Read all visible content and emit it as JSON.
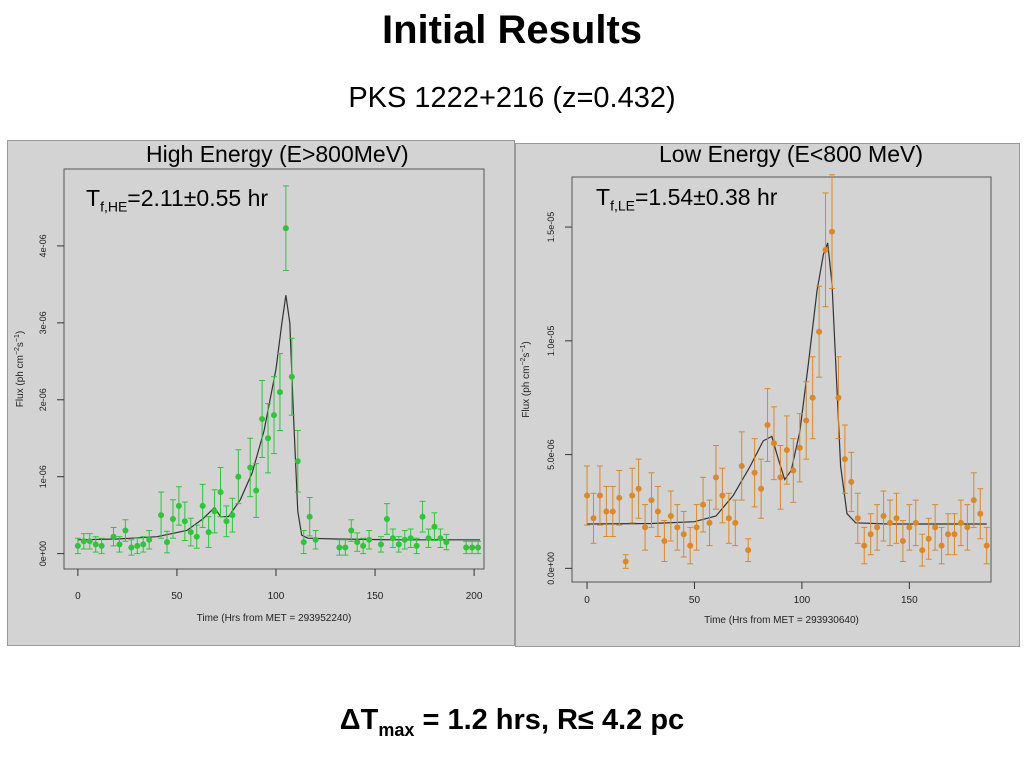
{
  "slide": {
    "title": "Initial Results",
    "subtitle": "PKS 1222+216 (z=0.432)"
  },
  "footer": {
    "delta": "ΔT",
    "sub": "max",
    "rest": " = 1.2 hrs, R≤ 4.2 pc"
  },
  "colors": {
    "panel_bg": "#d3d3d3",
    "plot_bg": "#d3d3d3",
    "high_energy": "#2fc43a",
    "low_energy": "#d9882a",
    "fit_line": "#333333"
  },
  "chart_data": [
    {
      "type": "scatter",
      "caption": "High Energy (E>800MeV)",
      "fit_label": {
        "prefix": "T",
        "sub": "f,HE",
        "rest": "=2.11±0.55 hr"
      },
      "xlabel": "Time (Hrs from MET = 293952240)",
      "ylabel": "Flux (ph cm",
      "ylabel_sup1": "−2",
      "ylabel_mid": "s",
      "ylabel_sup2": "−1",
      "ylabel_end": ")",
      "xlim": [
        -7,
        205
      ],
      "ylim": [
        -2e-07,
        5e-06
      ],
      "xticks": [
        0,
        50,
        100,
        150,
        200
      ],
      "xtick_labels": [
        "0",
        "50",
        "100",
        "150",
        "200"
      ],
      "yticks": [
        0,
        1e-06,
        2e-06,
        3e-06,
        4e-06
      ],
      "ytick_labels": [
        "0e+00",
        "1e-06",
        "2e-06",
        "3e-06",
        "4e-06"
      ],
      "grid": false,
      "point_color": "#2fc43a",
      "points": [
        [
          0,
          1e-07,
          1e-07
        ],
        [
          3,
          1.6e-07,
          1e-07
        ],
        [
          6,
          1.6e-07,
          1e-07
        ],
        [
          9,
          1.2e-07,
          1e-07
        ],
        [
          12,
          1e-07,
          1e-07
        ],
        [
          18,
          2.2e-07,
          1.2e-07
        ],
        [
          21,
          1.2e-07,
          1e-07
        ],
        [
          24,
          3e-07,
          1.4e-07
        ],
        [
          27,
          8e-08,
          1e-07
        ],
        [
          30,
          1e-07,
          1e-07
        ],
        [
          33,
          1.2e-07,
          1e-07
        ],
        [
          36,
          1.8e-07,
          1.2e-07
        ],
        [
          42,
          5e-07,
          3e-07
        ],
        [
          45,
          1.5e-07,
          1.4e-07
        ],
        [
          48,
          4.5e-07,
          2.5e-07
        ],
        [
          51,
          6.2e-07,
          2.5e-07
        ],
        [
          54,
          4.2e-07,
          2.5e-07
        ],
        [
          57,
          2.8e-07,
          1.8e-07
        ],
        [
          60,
          2.2e-07,
          1.5e-07
        ],
        [
          63,
          6.2e-07,
          2.8e-07
        ],
        [
          66,
          2.8e-07,
          2e-07
        ],
        [
          69,
          5.5e-07,
          2.8e-07
        ],
        [
          72,
          8e-07,
          3.2e-07
        ],
        [
          75,
          4.2e-07,
          2e-07
        ],
        [
          78,
          5e-07,
          2.2e-07
        ],
        [
          81,
          1e-06,
          3.5e-07
        ],
        [
          87,
          1.12e-06,
          3.8e-07
        ],
        [
          90,
          8.2e-07,
          3.5e-07
        ],
        [
          93,
          1.75e-06,
          5e-07
        ],
        [
          96,
          1.5e-06,
          4.5e-07
        ],
        [
          99,
          1.8e-06,
          5e-07
        ],
        [
          102,
          2.1e-06,
          5e-07
        ],
        [
          105,
          4.23e-06,
          5.5e-07
        ],
        [
          108,
          2.3e-06,
          5e-07
        ],
        [
          111,
          1.2e-06,
          4e-07
        ],
        [
          114,
          1.5e-07,
          1.5e-07
        ],
        [
          117,
          4.8e-07,
          2.5e-07
        ],
        [
          120,
          1.8e-07,
          1.2e-07
        ],
        [
          132,
          8e-08,
          1e-07
        ],
        [
          135,
          8e-08,
          1e-07
        ],
        [
          138,
          3e-07,
          1.4e-07
        ],
        [
          141,
          1.5e-07,
          1.2e-07
        ],
        [
          144,
          1e-07,
          1e-07
        ],
        [
          147,
          1.8e-07,
          1.2e-07
        ],
        [
          153,
          1.2e-07,
          1e-07
        ],
        [
          156,
          4.5e-07,
          2e-07
        ],
        [
          159,
          2e-07,
          1.2e-07
        ],
        [
          162,
          1.2e-07,
          1e-07
        ],
        [
          165,
          1.8e-07,
          1.2e-07
        ],
        [
          168,
          2e-07,
          1.2e-07
        ],
        [
          171,
          1e-07,
          1e-07
        ],
        [
          174,
          4.8e-07,
          2e-07
        ],
        [
          177,
          2e-07,
          1.2e-07
        ],
        [
          180,
          3.5e-07,
          1.8e-07
        ],
        [
          183,
          2e-07,
          1.2e-07
        ],
        [
          186,
          1.5e-07,
          1e-07
        ],
        [
          196,
          8e-08,
          8e-08
        ],
        [
          199,
          8e-08,
          8e-08
        ],
        [
          202,
          8e-08,
          8e-08
        ]
      ],
      "fit_curve": [
        [
          0,
          1.8e-07
        ],
        [
          20,
          1.9e-07
        ],
        [
          40,
          2.2e-07
        ],
        [
          55,
          3e-07
        ],
        [
          63,
          4.5e-07
        ],
        [
          69,
          6e-07
        ],
        [
          72,
          4.8e-07
        ],
        [
          76,
          4.8e-07
        ],
        [
          82,
          7e-07
        ],
        [
          88,
          1.05e-06
        ],
        [
          94,
          1.6e-06
        ],
        [
          100,
          2.4e-06
        ],
        [
          103,
          3e-06
        ],
        [
          105,
          3.36e-06
        ],
        [
          107,
          3e-06
        ],
        [
          109,
          1.7e-06
        ],
        [
          111,
          5.5e-07
        ],
        [
          113,
          2.4e-07
        ],
        [
          116,
          2e-07
        ],
        [
          130,
          1.9e-07
        ],
        [
          160,
          1.8e-07
        ],
        [
          203,
          1.8e-07
        ]
      ]
    },
    {
      "type": "scatter",
      "caption": "Low Energy (E<800 MeV)",
      "fit_label": {
        "prefix": "T",
        "sub": "f,LE",
        "rest": "=1.54±0.38 hr"
      },
      "xlabel": "Time (Hrs from MET = 293930640)",
      "ylabel": "Flux (ph cm",
      "ylabel_sup1": "−2",
      "ylabel_mid": "s",
      "ylabel_sup2": "−1",
      "ylabel_end": ")",
      "xlim": [
        -7,
        188
      ],
      "ylim": [
        -6e-07,
        1.72e-05
      ],
      "xticks": [
        0,
        50,
        100,
        150
      ],
      "xtick_labels": [
        "0",
        "50",
        "100",
        "150"
      ],
      "yticks": [
        0,
        5e-06,
        1e-05,
        1.5e-05
      ],
      "ytick_labels": [
        "0.0e+00",
        "5.0e-06",
        "1.0e-05",
        "1.5e-05"
      ],
      "grid": false,
      "point_color": "#d9882a",
      "points": [
        [
          0,
          3.2e-06,
          1.3e-06
        ],
        [
          3,
          2.2e-06,
          1.1e-06
        ],
        [
          6,
          3.2e-06,
          1.3e-06
        ],
        [
          9,
          2.5e-06,
          1.1e-06
        ],
        [
          12,
          2.5e-06,
          1.1e-06
        ],
        [
          15,
          3.1e-06,
          1.2e-06
        ],
        [
          18,
          3e-07,
          3e-07
        ],
        [
          21,
          3.2e-06,
          1.2e-06
        ],
        [
          24,
          3.5e-06,
          1.3e-06
        ],
        [
          27,
          1.8e-06,
          1e-06
        ],
        [
          30,
          3e-06,
          1.2e-06
        ],
        [
          33,
          2.5e-06,
          1.1e-06
        ],
        [
          36,
          1.2e-06,
          9e-07
        ],
        [
          39,
          2.3e-06,
          1.1e-06
        ],
        [
          42,
          1.8e-06,
          1e-06
        ],
        [
          45,
          1.5e-06,
          1e-06
        ],
        [
          48,
          1e-06,
          8e-07
        ],
        [
          51,
          1.8e-06,
          1e-06
        ],
        [
          54,
          2.8e-06,
          1.2e-06
        ],
        [
          57,
          2e-06,
          1e-06
        ],
        [
          60,
          4e-06,
          1.4e-06
        ],
        [
          63,
          3.2e-06,
          1.2e-06
        ],
        [
          66,
          2.2e-06,
          1.1e-06
        ],
        [
          69,
          2e-06,
          1e-06
        ],
        [
          72,
          4.5e-06,
          1.5e-06
        ],
        [
          75,
          8e-07,
          5e-07
        ],
        [
          78,
          4.2e-06,
          1.5e-06
        ],
        [
          81,
          3.5e-06,
          1.3e-06
        ],
        [
          84,
          6.3e-06,
          1.6e-06
        ],
        [
          87,
          5.5e-06,
          1.6e-06
        ],
        [
          90,
          4e-06,
          1.4e-06
        ],
        [
          93,
          5.2e-06,
          1.5e-06
        ],
        [
          96,
          4.3e-06,
          1.4e-06
        ],
        [
          99,
          5.3e-06,
          1.5e-06
        ],
        [
          102,
          6.5e-06,
          1.7e-06
        ],
        [
          105,
          7.5e-06,
          1.8e-06
        ],
        [
          108,
          1.04e-05,
          2e-06
        ],
        [
          111,
          1.4e-05,
          2.5e-06
        ],
        [
          114,
          1.48e-05,
          2.5e-06
        ],
        [
          117,
          7.5e-06,
          1.8e-06
        ],
        [
          120,
          4.8e-06,
          1.5e-06
        ],
        [
          123,
          3.8e-06,
          1.3e-06
        ],
        [
          126,
          2.2e-06,
          1.1e-06
        ],
        [
          129,
          1e-06,
          8e-07
        ],
        [
          132,
          1.5e-06,
          9e-07
        ],
        [
          135,
          1.8e-06,
          1e-06
        ],
        [
          138,
          2.3e-06,
          1.1e-06
        ],
        [
          141,
          2e-06,
          1e-06
        ],
        [
          144,
          2.2e-06,
          1.1e-06
        ],
        [
          147,
          1.2e-06,
          9e-07
        ],
        [
          150,
          1.8e-06,
          1e-06
        ],
        [
          153,
          2e-06,
          1e-06
        ],
        [
          156,
          8e-07,
          7e-07
        ],
        [
          159,
          1.3e-06,
          9e-07
        ],
        [
          162,
          1.8e-06,
          1e-06
        ],
        [
          165,
          1e-06,
          8e-07
        ],
        [
          168,
          1.5e-06,
          9e-07
        ],
        [
          171,
          1.5e-06,
          9e-07
        ],
        [
          174,
          2e-06,
          1e-06
        ],
        [
          177,
          1.8e-06,
          1e-06
        ],
        [
          180,
          3e-06,
          1.2e-06
        ],
        [
          183,
          2.4e-06,
          1.1e-06
        ],
        [
          186,
          1e-06,
          8e-07
        ]
      ],
      "fit_curve": [
        [
          0,
          1.95e-06
        ],
        [
          30,
          1.97e-06
        ],
        [
          50,
          2.05e-06
        ],
        [
          60,
          2.3e-06
        ],
        [
          68,
          3.2e-06
        ],
        [
          76,
          4.5e-06
        ],
        [
          82,
          5.6e-06
        ],
        [
          86,
          5.8e-06
        ],
        [
          89,
          4.8e-06
        ],
        [
          92,
          3.9e-06
        ],
        [
          95,
          4.3e-06
        ],
        [
          99,
          6e-06
        ],
        [
          103,
          9e-06
        ],
        [
          107,
          1.22e-05
        ],
        [
          110,
          1.38e-05
        ],
        [
          112,
          1.43e-05
        ],
        [
          114,
          1.25e-05
        ],
        [
          116,
          8.5e-06
        ],
        [
          118,
          4.5e-06
        ],
        [
          121,
          2.4e-06
        ],
        [
          125,
          2e-06
        ],
        [
          140,
          1.95e-06
        ],
        [
          186,
          1.95e-06
        ]
      ]
    }
  ]
}
